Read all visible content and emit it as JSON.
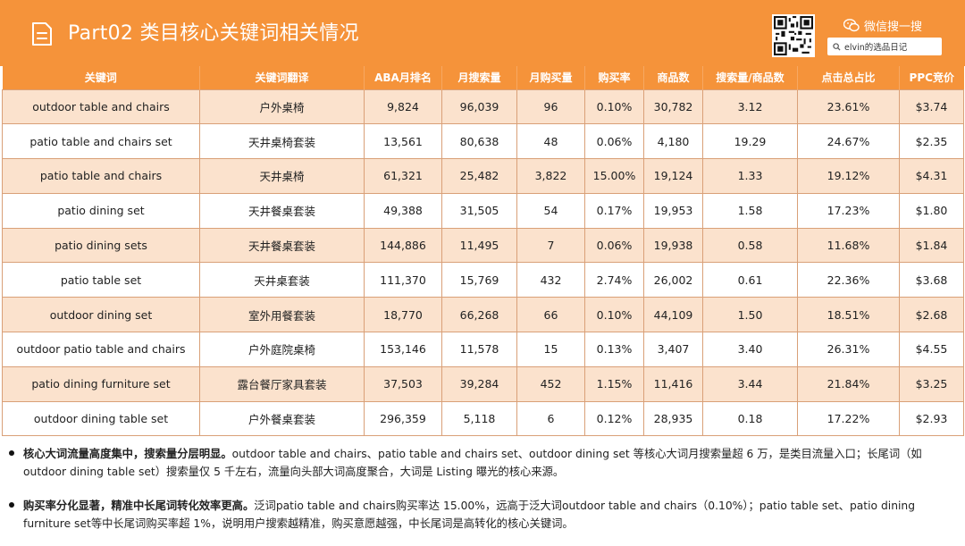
{
  "header": {
    "title": "Part02 类目核心关键词相关情况",
    "wechat_label": "微信搜一搜",
    "search_text": "elvin的选品日记"
  },
  "table": {
    "columns": [
      "关键词",
      "关键词翻译",
      "ABA月排名",
      "月搜索量",
      "月购买量",
      "购买率",
      "商品数",
      "搜索量/商品数",
      "点击总占比",
      "PPC竞价"
    ],
    "rows": [
      [
        "outdoor table and chairs",
        "户外桌椅",
        "9,824",
        "96,039",
        "96",
        "0.10%",
        "30,782",
        "3.12",
        "23.61%",
        "$3.74"
      ],
      [
        "patio table and chairs set",
        "天井桌椅套装",
        "13,561",
        "80,638",
        "48",
        "0.06%",
        "4,180",
        "19.29",
        "24.67%",
        "$2.35"
      ],
      [
        "patio table and chairs",
        "天井桌椅",
        "61,321",
        "25,482",
        "3,822",
        "15.00%",
        "19,124",
        "1.33",
        "19.12%",
        "$4.31"
      ],
      [
        "patio dining set",
        "天井餐桌套装",
        "49,388",
        "31,505",
        "54",
        "0.17%",
        "19,953",
        "1.58",
        "17.23%",
        "$1.80"
      ],
      [
        "patio dining sets",
        "天井餐桌套装",
        "144,886",
        "11,495",
        "7",
        "0.06%",
        "19,938",
        "0.58",
        "11.68%",
        "$1.84"
      ],
      [
        "patio table set",
        "天井桌套装",
        "111,370",
        "15,769",
        "432",
        "2.74%",
        "26,002",
        "0.61",
        "22.36%",
        "$3.68"
      ],
      [
        "outdoor dining set",
        "室外用餐套装",
        "18,770",
        "66,268",
        "66",
        "0.10%",
        "44,109",
        "1.50",
        "18.51%",
        "$2.68"
      ],
      [
        "outdoor patio table and chairs",
        "户外庭院桌椅",
        "153,146",
        "11,578",
        "15",
        "0.13%",
        "3,407",
        "3.40",
        "26.31%",
        "$4.55"
      ],
      [
        "patio dining furniture set",
        "露台餐厅家具套装",
        "37,503",
        "39,284",
        "452",
        "1.15%",
        "11,416",
        "3.44",
        "21.84%",
        "$3.25"
      ],
      [
        "outdoor dining table set",
        "户外餐桌套装",
        "296,359",
        "5,118",
        "6",
        "0.12%",
        "28,935",
        "0.18",
        "17.22%",
        "$2.93"
      ]
    ]
  },
  "notes": [
    {
      "bold": "核心大词流量高度集中，搜索量分层明显。",
      "text": "outdoor table and chairs、patio table and chairs set、outdoor dining set 等核心大词月搜索量超 6 万，是类目流量入口；长尾词（如outdoor dining table set）搜索量仅 5 千左右，流量向头部大词高度聚合，大词是 Listing 曝光的核心来源。"
    },
    {
      "bold": "购买率分化显著，精准中长尾词转化效率更高。",
      "text": "泛词patio table and chairs购买率达 15.00%，远高于泛大词outdoor table and chairs（0.10%）；patio table set、patio dining furniture set等中长尾词购买率超 1%，说明用户搜索越精准，购买意愿越强，中长尾词是高转化的核心关键词。"
    }
  ],
  "icons": {
    "doc": "document-icon",
    "qr": "qr-code-icon",
    "wechat": "wechat-icon",
    "search": "search-icon"
  },
  "colors": {
    "accent": "#f5933a",
    "row_alt": "#fbe2cd"
  }
}
